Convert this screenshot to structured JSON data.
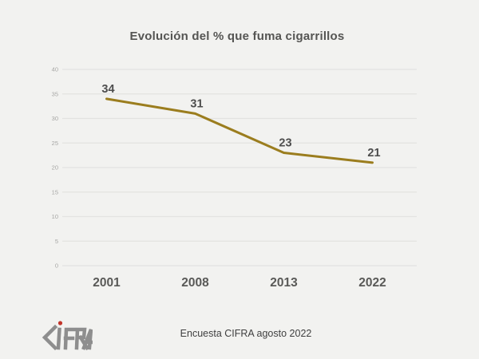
{
  "chart_data": {
    "type": "line",
    "title": "Evolución del % que fuma cigarrillos",
    "categories": [
      "2001",
      "2008",
      "2013",
      "2022"
    ],
    "values": [
      34,
      31,
      23,
      21
    ],
    "series_name": "% que fuma cigarrillos",
    "ylim": [
      0,
      40
    ],
    "ytick_step": 5,
    "yticks": [
      0,
      5,
      10,
      15,
      20,
      25,
      30,
      35,
      40
    ],
    "grid": "horizontal",
    "legend": "none",
    "line_color": "#9B7D1E",
    "xlabel": "",
    "ylabel": ""
  },
  "footer": {
    "caption": "Encuesta CIFRA agosto 2022"
  },
  "logo": {
    "name": "CIFRA",
    "dot_color": "#C2342A",
    "letter_color": "#8E8E8E"
  },
  "colors": {
    "background": "#F2F2F0",
    "gridline": "#E3E3E1",
    "title_text": "#555553",
    "axis_tick_text": "#A6A6A4",
    "data_label_text": "#4D4D4D",
    "x_label_text": "#595957"
  }
}
